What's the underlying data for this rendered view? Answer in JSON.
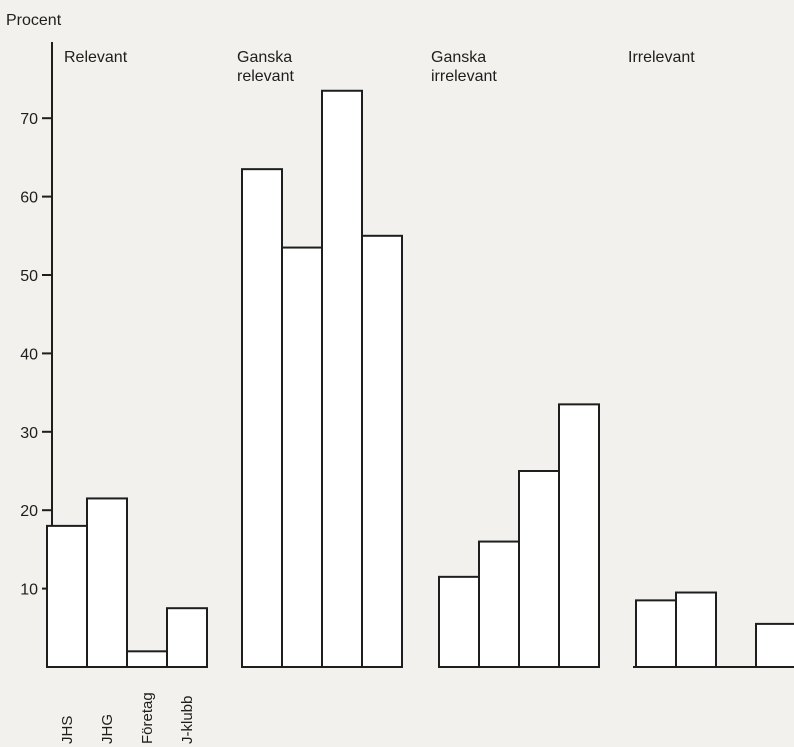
{
  "chart_data": {
    "type": "bar",
    "ylabel": "Procent",
    "yticks": [
      10,
      20,
      30,
      40,
      50,
      60,
      70
    ],
    "ylim": [
      0,
      75
    ],
    "categories": [
      "JHS",
      "JHG",
      "Företag",
      "J-klubb"
    ],
    "groups": [
      {
        "name_lines": [
          "Relevant"
        ],
        "values": [
          18,
          21.5,
          2,
          7.5
        ]
      },
      {
        "name_lines": [
          "Ganska",
          "relevant"
        ],
        "values": [
          63.5,
          53.5,
          73.5,
          55
        ]
      },
      {
        "name_lines": [
          "Ganska",
          "irrelevant"
        ],
        "values": [
          11.5,
          16,
          25,
          33.5
        ]
      },
      {
        "name_lines": [
          "Irrelevant"
        ],
        "values": [
          8.5,
          9.5,
          0,
          5.5
        ]
      }
    ],
    "grid": false,
    "colors": {
      "bar_fill": "#ffffff",
      "stroke": "#1e1e1e",
      "background": "#f2f1ed"
    }
  }
}
